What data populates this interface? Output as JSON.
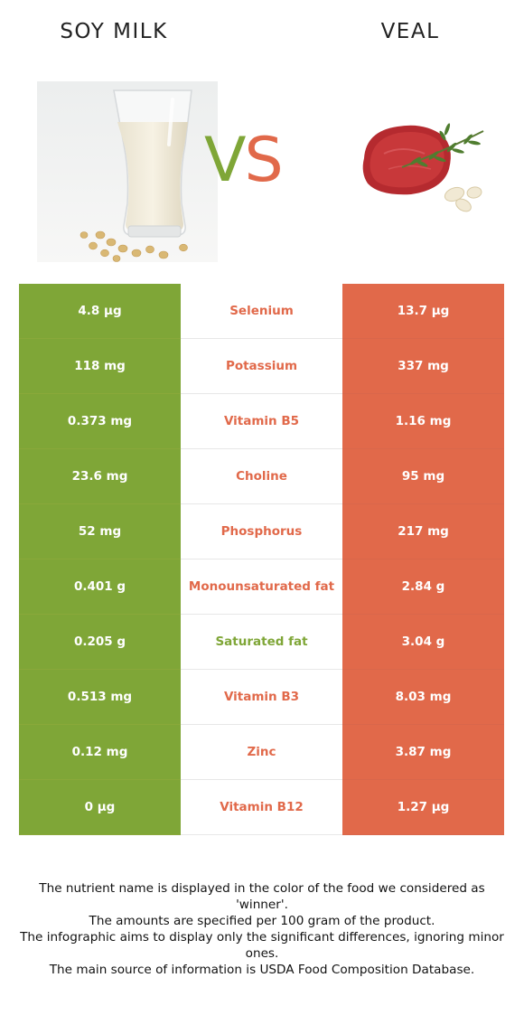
{
  "colors": {
    "soy_green": "#7fa637",
    "veal_red": "#e1694a",
    "mid_bg": "#ffffff",
    "text_dark": "#222222"
  },
  "header": {
    "left_title": "SOY MILK",
    "right_title": "VEAL",
    "vs_v": "V",
    "vs_s": "S"
  },
  "images": {
    "left": "soy-milk-glass-image",
    "right": "raw-veal-steak-image"
  },
  "table": {
    "rows": [
      {
        "left": "4.8 µg",
        "nutrient": "Selenium",
        "right": "13.7 µg",
        "winner": "right"
      },
      {
        "left": "118 mg",
        "nutrient": "Potassium",
        "right": "337 mg",
        "winner": "right"
      },
      {
        "left": "0.373 mg",
        "nutrient": "Vitamin B5",
        "right": "1.16 mg",
        "winner": "right"
      },
      {
        "left": "23.6 mg",
        "nutrient": "Choline",
        "right": "95 mg",
        "winner": "right"
      },
      {
        "left": "52 mg",
        "nutrient": "Phosphorus",
        "right": "217 mg",
        "winner": "right"
      },
      {
        "left": "0.401 g",
        "nutrient": "Monounsaturated fat",
        "right": "2.84 g",
        "winner": "right"
      },
      {
        "left": "0.205 g",
        "nutrient": "Saturated fat",
        "right": "3.04 g",
        "winner": "left"
      },
      {
        "left": "0.513 mg",
        "nutrient": "Vitamin B3",
        "right": "8.03 mg",
        "winner": "right"
      },
      {
        "left": "0.12 mg",
        "nutrient": "Zinc",
        "right": "3.87 mg",
        "winner": "right"
      },
      {
        "left": "0 µg",
        "nutrient": "Vitamin B12",
        "right": "1.27 µg",
        "winner": "right"
      }
    ]
  },
  "footer": {
    "lines": [
      "The nutrient name is displayed in the color of the food we considered as 'winner'.",
      "The amounts are specified per 100 gram of the product.",
      "The infographic aims to display only the significant differences, ignoring minor ones.",
      "The main source of information is USDA Food Composition Database."
    ]
  }
}
